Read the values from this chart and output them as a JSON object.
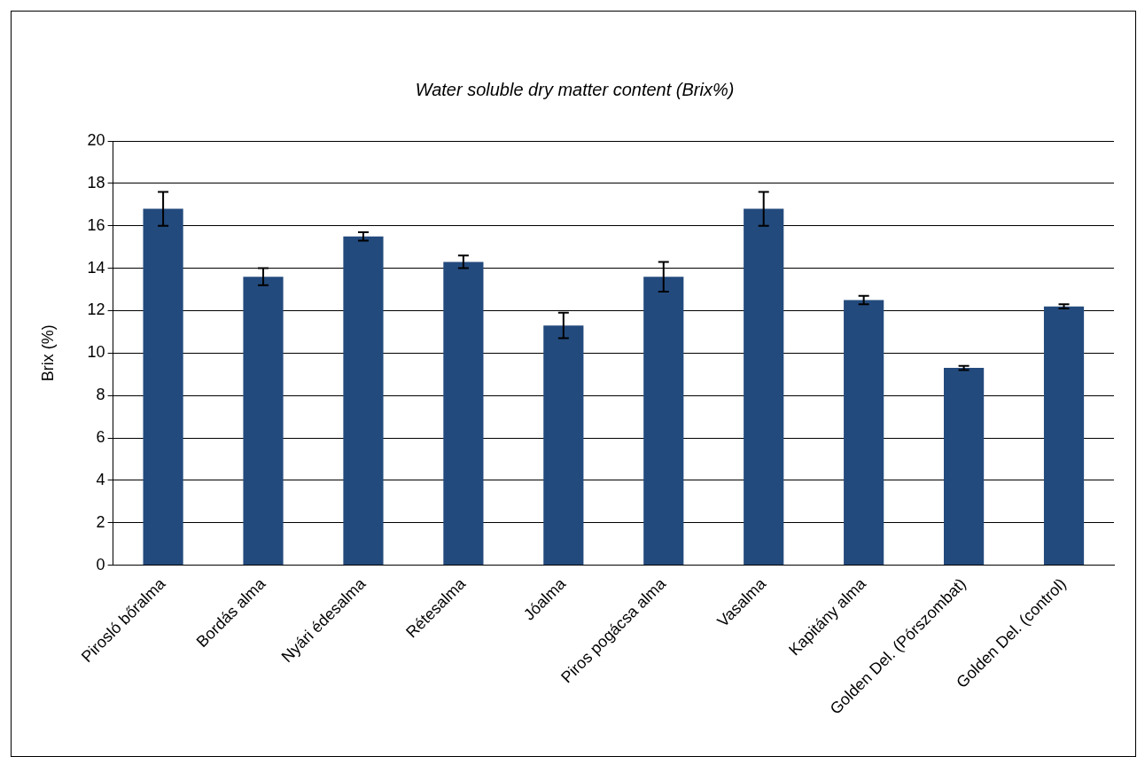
{
  "chart_data": {
    "type": "bar",
    "title": "Water soluble dry matter content (Brix%)",
    "ylabel": "Brix (%)",
    "categories": [
      "Pirosló bőralma",
      "Bordás alma",
      "Nyári édesalma",
      "Rétesalma",
      "Jóalma",
      "Piros pogácsa alma",
      "Vasalma",
      "Kapitány alma",
      "Golden Del. (Pórszombat)",
      "Golden Del. (control)"
    ],
    "values": [
      16.8,
      13.6,
      15.5,
      14.3,
      11.3,
      13.6,
      16.8,
      12.5,
      9.3,
      12.2
    ],
    "errors": [
      0.8,
      0.4,
      0.2,
      0.3,
      0.6,
      0.7,
      0.8,
      0.2,
      0.1,
      0.1
    ],
    "color": "#234a7d",
    "ylim": [
      0,
      20
    ],
    "yticks": [
      0,
      2,
      4,
      6,
      8,
      10,
      12,
      14,
      16,
      18,
      20
    ],
    "grid": "y",
    "legend": false
  }
}
